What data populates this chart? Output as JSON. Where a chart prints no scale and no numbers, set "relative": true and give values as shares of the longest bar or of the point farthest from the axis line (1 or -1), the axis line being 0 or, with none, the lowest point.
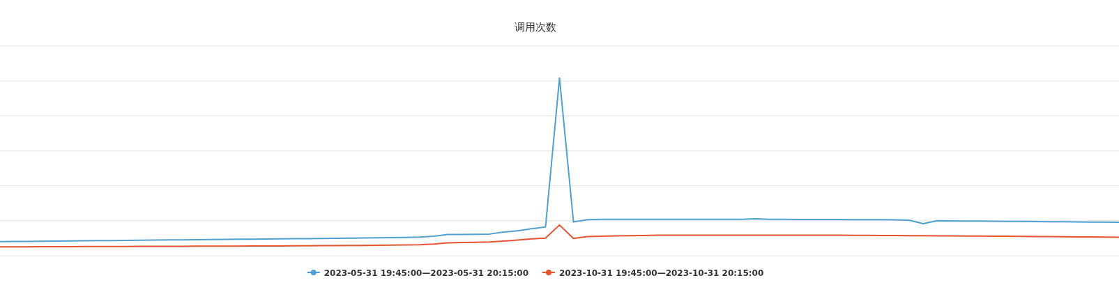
{
  "chart_data": {
    "type": "line",
    "title": "调用次数",
    "relative": true,
    "grid": "y",
    "legend": "bottom",
    "categories": [
      null,
      null,
      null,
      null,
      null,
      null,
      null,
      null,
      null,
      null,
      null,
      null,
      null,
      null,
      null,
      null,
      null,
      null,
      null,
      null,
      null,
      null,
      null,
      null,
      null,
      null,
      null,
      null,
      null,
      null,
      null,
      null,
      null,
      null,
      null,
      null,
      null,
      null,
      null,
      null,
      null,
      null,
      null,
      null,
      null,
      null,
      null,
      null,
      null,
      null,
      null,
      null,
      null,
      null,
      null,
      null,
      null,
      null,
      null,
      null,
      null,
      null,
      null,
      null,
      null,
      null,
      null,
      null,
      null,
      null,
      null,
      null,
      null,
      null,
      null,
      null,
      null,
      null,
      null,
      null,
      null
    ],
    "series": [
      {
        "name": "2023-05-31 19:45:00—2023-05-31 20:15:00",
        "color": "#4ea1cf",
        "values": [
          0.079,
          0.08,
          0.08,
          0.081,
          0.082,
          0.083,
          0.084,
          0.085,
          0.085,
          0.086,
          0.087,
          0.088,
          0.089,
          0.089,
          0.09,
          0.091,
          0.092,
          0.093,
          0.093,
          0.094,
          0.095,
          0.096,
          0.096,
          0.097,
          0.098,
          0.099,
          0.1,
          0.101,
          0.102,
          0.103,
          0.105,
          0.11,
          0.12,
          0.12,
          0.121,
          0.122,
          0.133,
          0.14,
          0.152,
          0.162,
          1.0,
          0.19,
          0.203,
          0.205,
          0.205,
          0.205,
          0.205,
          0.205,
          0.205,
          0.205,
          0.205,
          0.205,
          0.205,
          0.205,
          0.208,
          0.205,
          0.205,
          0.204,
          0.204,
          0.204,
          0.204,
          0.203,
          0.203,
          0.203,
          0.202,
          0.2,
          0.18,
          0.197,
          0.196,
          0.195,
          0.195,
          0.194,
          0.193,
          0.193,
          0.192,
          0.191,
          0.191,
          0.19,
          0.189,
          0.189,
          0.188
        ]
      },
      {
        "name": "2023-10-31 19:45:00—2023-10-31 20:15:00",
        "color": "#e5532d",
        "values": [
          0.05,
          0.05,
          0.05,
          0.051,
          0.051,
          0.051,
          0.052,
          0.052,
          0.052,
          0.052,
          0.053,
          0.053,
          0.053,
          0.053,
          0.054,
          0.054,
          0.054,
          0.054,
          0.055,
          0.055,
          0.055,
          0.056,
          0.056,
          0.057,
          0.057,
          0.058,
          0.058,
          0.059,
          0.06,
          0.061,
          0.062,
          0.066,
          0.073,
          0.074,
          0.075,
          0.077,
          0.082,
          0.088,
          0.095,
          0.099,
          0.173,
          0.097,
          0.108,
          0.11,
          0.112,
          0.113,
          0.114,
          0.116,
          0.116,
          0.116,
          0.116,
          0.116,
          0.116,
          0.116,
          0.116,
          0.116,
          0.116,
          0.116,
          0.116,
          0.116,
          0.116,
          0.115,
          0.115,
          0.114,
          0.114,
          0.113,
          0.113,
          0.112,
          0.112,
          0.111,
          0.111,
          0.11,
          0.11,
          0.109,
          0.108,
          0.108,
          0.107,
          0.106,
          0.106,
          0.105,
          0.104
        ]
      }
    ]
  }
}
